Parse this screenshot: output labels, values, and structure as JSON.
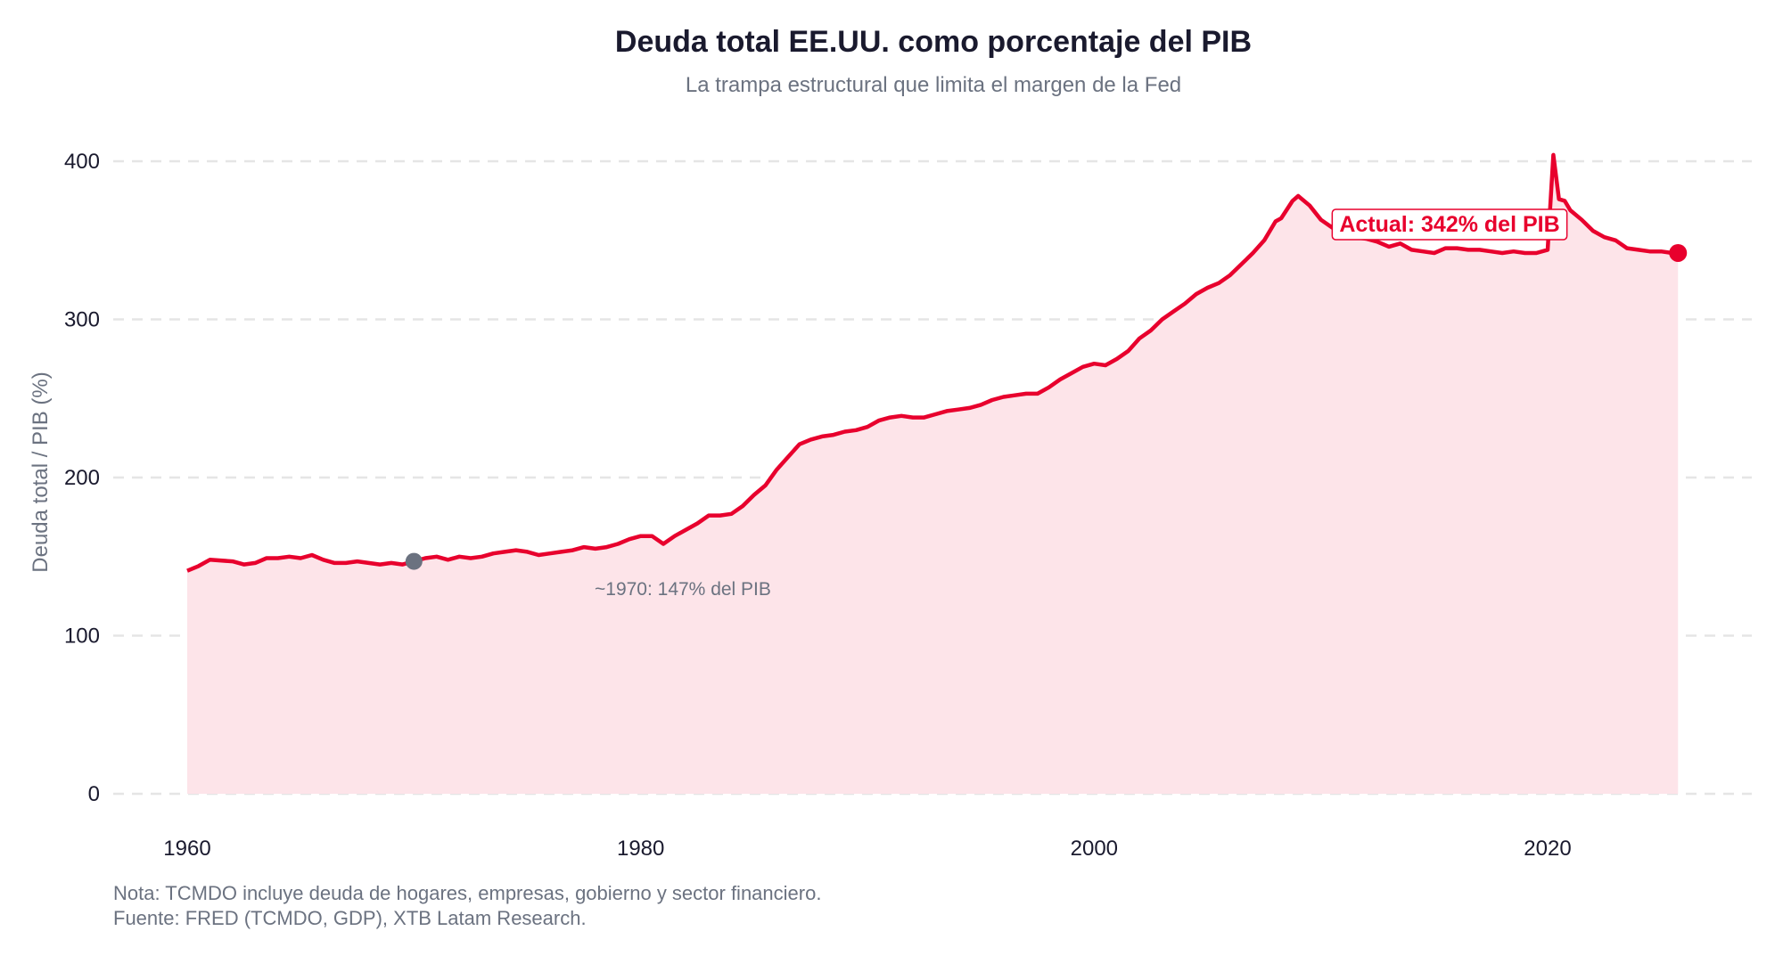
{
  "chart_data": {
    "type": "area",
    "title": "Deuda total EE.UU. como porcentaje del PIB",
    "subtitle": "La trampa estructural que limita el margen de la Fed",
    "xlabel": "",
    "ylabel": "Deuda total / PIB (%)",
    "xlim": [
      1958,
      2029
    ],
    "ylim": [
      -8,
      410
    ],
    "xticks": [
      1960,
      1980,
      2000,
      2020
    ],
    "yticks": [
      0,
      100,
      200,
      300,
      400
    ],
    "grid": "horizontal dashed",
    "colors": {
      "line": "#e8002d",
      "fill": "#fde4e9",
      "marker_1970": "#6b7280",
      "grid": "#e5e5e5"
    },
    "x": [
      1960,
      1960.5,
      1961,
      1962,
      1962.5,
      1963,
      1963.5,
      1964,
      1964.5,
      1965,
      1965.5,
      1966,
      1966.5,
      1967,
      1967.5,
      1968,
      1968.5,
      1969,
      1969.5,
      1970,
      1970.5,
      1971,
      1971.5,
      1972,
      1972.5,
      1973,
      1973.5,
      1974,
      1974.5,
      1975,
      1975.5,
      1976,
      1976.5,
      1977,
      1977.5,
      1978,
      1978.5,
      1979,
      1979.5,
      1980,
      1980.5,
      1981,
      1981.5,
      1982,
      1982.5,
      1983,
      1983.5,
      1984,
      1984.5,
      1985,
      1985.5,
      1986,
      1986.5,
      1987,
      1987.5,
      1988,
      1988.5,
      1989,
      1989.5,
      1990,
      1990.5,
      1991,
      1991.5,
      1992,
      1992.5,
      1993,
      1993.5,
      1994,
      1994.5,
      1995,
      1995.5,
      1996,
      1996.5,
      1997,
      1997.5,
      1998,
      1998.5,
      1999,
      1999.5,
      2000,
      2000.5,
      2001,
      2001.5,
      2002,
      2002.5,
      2003,
      2003.5,
      2004,
      2004.5,
      2005,
      2005.5,
      2006,
      2006.5,
      2007,
      2007.5,
      2008,
      2008.25,
      2008.75,
      2009,
      2009.5,
      2010,
      2010.5,
      2011,
      2011.5,
      2012,
      2012.5,
      2013,
      2013.5,
      2014,
      2014.5,
      2015,
      2015.5,
      2016,
      2016.5,
      2017,
      2017.5,
      2018,
      2018.5,
      2019,
      2019.5,
      2020,
      2020.25,
      2020.5,
      2020.75,
      2021,
      2021.5,
      2022,
      2022.5,
      2023,
      2023.5,
      2024,
      2024.5,
      2025,
      2025.5,
      2025.75
    ],
    "values": [
      141,
      144,
      148,
      147,
      145,
      146,
      149,
      149,
      150,
      149,
      151,
      148,
      146,
      146,
      147,
      146,
      145,
      146,
      145,
      147,
      149,
      150,
      148,
      150,
      149,
      150,
      152,
      153,
      154,
      153,
      151,
      152,
      153,
      154,
      156,
      155,
      156,
      158,
      161,
      163,
      163,
      158,
      163,
      167,
      171,
      176,
      176,
      177,
      182,
      189,
      195,
      205,
      213,
      221,
      224,
      226,
      227,
      229,
      230,
      232,
      236,
      238,
      239,
      238,
      238,
      240,
      242,
      243,
      244,
      246,
      249,
      251,
      252,
      253,
      253,
      257,
      262,
      266,
      270,
      272,
      271,
      275,
      280,
      288,
      293,
      300,
      305,
      310,
      316,
      320,
      323,
      328,
      335,
      342,
      350,
      362,
      364,
      375,
      378,
      372,
      363,
      358,
      355,
      352,
      351,
      349,
      346,
      348,
      344,
      343,
      342,
      345,
      345,
      344,
      344,
      343,
      342,
      343,
      342,
      342,
      344,
      404,
      376,
      375,
      369,
      363,
      356,
      352,
      350,
      345,
      344,
      343,
      343,
      342,
      342
    ],
    "annotations": {
      "start": {
        "x": 1970,
        "y": 147,
        "text": "~1970: 147% del PIB"
      },
      "current": {
        "x": 2025.75,
        "y": 342,
        "text": "Actual: 342% del PIB"
      }
    },
    "footnotes": [
      "Nota: TCMDO incluye deuda de hogares, empresas, gobierno y sector financiero.",
      "Fuente: FRED (TCMDO, GDP), XTB Latam Research."
    ]
  }
}
